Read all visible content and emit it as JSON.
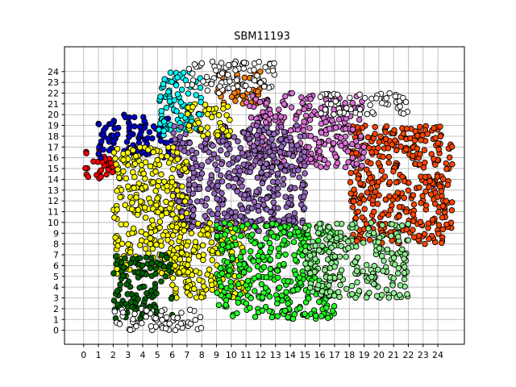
{
  "chart_data": {
    "type": "scatter",
    "title": "SBM11193",
    "xlabel": "",
    "ylabel": "",
    "xlim": [
      -1.3,
      25.8
    ],
    "ylim": [
      -1.3,
      26.3
    ],
    "grid": true,
    "x_ticks": [
      0,
      1,
      2,
      3,
      4,
      5,
      6,
      7,
      8,
      9,
      10,
      11,
      12,
      13,
      14,
      15,
      16,
      17,
      18,
      19,
      20,
      21,
      22,
      23,
      24
    ],
    "y_ticks": [
      0,
      1,
      2,
      3,
      4,
      5,
      6,
      7,
      8,
      9,
      10,
      11,
      12,
      13,
      14,
      15,
      16,
      17,
      18,
      19,
      20,
      21,
      22,
      23,
      24
    ],
    "x_tick_labels": [
      "0",
      "1",
      "2",
      "3",
      "4",
      "5",
      "6",
      "7",
      "8",
      "9",
      "10",
      "11",
      "12",
      "13",
      "14",
      "15",
      "16",
      "17",
      "18",
      "19",
      "20",
      "21",
      "22",
      "23",
      "24"
    ],
    "y_tick_labels": [
      "0",
      "1",
      "2",
      "3",
      "4",
      "5",
      "6",
      "7",
      "8",
      "9",
      "10",
      "11",
      "12",
      "13",
      "14",
      "15",
      "16",
      "17",
      "18",
      "19",
      "20",
      "21",
      "22",
      "23",
      "24"
    ],
    "marker_edge_color": "#000000",
    "clusters": [
      {
        "color": "#ff0000",
        "regions": [
          [
            0,
            14,
            2,
            17
          ]
        ]
      },
      {
        "color": "#0000cc",
        "regions": [
          [
            1,
            16,
            6,
            20
          ]
        ]
      },
      {
        "color": "#00ffff",
        "regions": [
          [
            5,
            18,
            8,
            24
          ]
        ]
      },
      {
        "color": "#ff7f0e",
        "regions": [
          [
            9,
            21,
            12,
            24
          ]
        ]
      },
      {
        "color": "#ff4500",
        "regions": [
          [
            18,
            8,
            25,
            19
          ]
        ]
      },
      {
        "color": "#da70d6",
        "regions": [
          [
            11,
            15,
            19,
            22
          ]
        ]
      },
      {
        "color": "#9467bd",
        "regions": [
          [
            6,
            9,
            15,
            19
          ]
        ]
      },
      {
        "color": "#ffff00",
        "regions": [
          [
            2,
            5,
            7,
            17
          ],
          [
            6,
            3,
            11,
            10
          ],
          [
            7,
            18,
            10,
            21
          ]
        ]
      },
      {
        "color": "#006400",
        "regions": [
          [
            2,
            1,
            6,
            7
          ]
        ]
      },
      {
        "color": "#22ff22",
        "regions": [
          [
            9,
            1,
            17,
            10
          ]
        ]
      },
      {
        "color": "#90ee90",
        "regions": [
          [
            15,
            3,
            22,
            10
          ]
        ]
      },
      {
        "color": "#ffffff",
        "regions": [
          [
            2,
            0,
            8,
            2
          ],
          [
            7,
            22,
            13,
            25
          ],
          [
            16,
            20,
            22,
            22
          ]
        ]
      }
    ]
  }
}
